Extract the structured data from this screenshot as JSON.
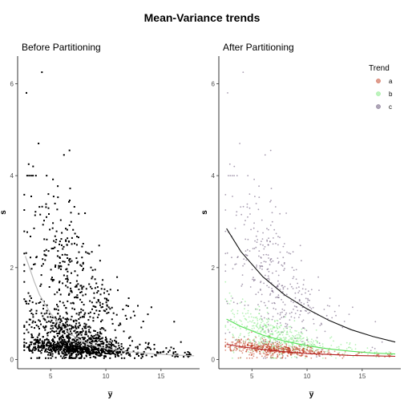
{
  "figure": {
    "title": "Mean-Variance trends"
  },
  "chart_data": [
    {
      "type": "scatter",
      "panel": "left",
      "title": "Before Partitioning",
      "xlabel": "y̅",
      "ylabel": "s",
      "xlim": [
        2,
        18.5
      ],
      "ylim": [
        -0.2,
        6.6
      ],
      "x_ticks": [
        5,
        10,
        15
      ],
      "y_ticks": [
        0,
        2,
        4,
        6
      ],
      "grid": false,
      "point_color": "#000000",
      "trend_line": {
        "color": "#bbbbbb",
        "x": [
          2.7,
          3.0,
          3.5,
          4.0,
          5.0,
          6.0,
          7.0,
          8.0,
          9.0,
          10.0,
          12.0,
          14.0,
          16.0,
          18.0
        ],
        "y": [
          2.25,
          2.05,
          1.7,
          1.4,
          1.0,
          0.72,
          0.52,
          0.38,
          0.3,
          0.24,
          0.17,
          0.13,
          0.1,
          0.08
        ]
      },
      "notable_points": [
        {
          "x": 4.2,
          "y": 6.25
        },
        {
          "x": 2.8,
          "y": 5.8
        },
        {
          "x": 3.9,
          "y": 4.7
        },
        {
          "x": 6.7,
          "y": 4.55
        },
        {
          "x": 6.2,
          "y": 4.45
        },
        {
          "x": 3.0,
          "y": 4.25
        },
        {
          "x": 3.4,
          "y": 4.2
        }
      ]
    },
    {
      "type": "scatter",
      "panel": "right",
      "title": "After Partitioning",
      "xlabel": "y̅",
      "ylabel": "s",
      "xlim": [
        2,
        18.5
      ],
      "ylim": [
        -0.2,
        6.6
      ],
      "x_ticks": [
        5,
        10,
        15
      ],
      "y_ticks": [
        0,
        2,
        4,
        6
      ],
      "grid": false,
      "legend": {
        "title": "Trend",
        "position": "right",
        "entries": [
          "a",
          "b",
          "c"
        ]
      },
      "series": [
        {
          "name": "a",
          "color": "#c0391b",
          "trend": {
            "x": [
              2.7,
              4.0,
              6.0,
              8.0,
              10.0,
              12.0,
              14.0,
              16.0,
              18.0
            ],
            "y": [
              0.33,
              0.28,
              0.22,
              0.17,
              0.13,
              0.11,
              0.09,
              0.08,
              0.07
            ]
          }
        },
        {
          "name": "b",
          "color": "#7ce87c",
          "trend": {
            "x": [
              2.7,
              4.0,
              6.0,
              8.0,
              10.0,
              12.0,
              14.0,
              16.0,
              18.0
            ],
            "y": [
              0.88,
              0.72,
              0.53,
              0.4,
              0.3,
              0.23,
              0.18,
              0.14,
              0.12
            ]
          }
        },
        {
          "name": "c",
          "color": "#5e4b70",
          "trend": {
            "x": [
              2.7,
              4.0,
              6.0,
              8.0,
              10.0,
              12.0,
              14.0,
              16.0,
              18.0
            ],
            "y": [
              2.85,
              2.35,
              1.8,
              1.4,
              1.1,
              0.85,
              0.65,
              0.5,
              0.38
            ]
          }
        }
      ],
      "notable_points": [
        {
          "x": 4.2,
          "y": 6.25
        },
        {
          "x": 2.8,
          "y": 5.8
        },
        {
          "x": 3.9,
          "y": 4.7
        },
        {
          "x": 6.7,
          "y": 4.55
        },
        {
          "x": 6.2,
          "y": 4.45
        },
        {
          "x": 3.0,
          "y": 4.25
        },
        {
          "x": 3.4,
          "y": 4.2
        }
      ]
    }
  ]
}
